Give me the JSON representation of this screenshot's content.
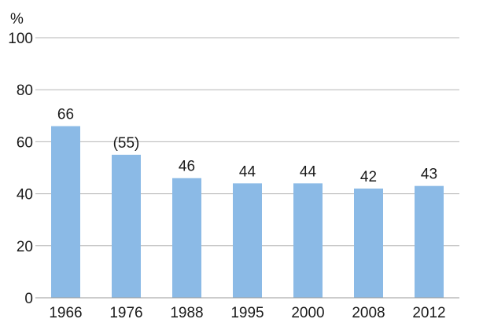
{
  "chart_data": {
    "type": "bar",
    "categories": [
      "1966",
      "1976",
      "1988",
      "1995",
      "2000",
      "2008",
      "2012"
    ],
    "values": [
      66,
      55,
      46,
      44,
      44,
      42,
      43
    ],
    "data_labels": [
      "66",
      "(55)",
      "46",
      "44",
      "44",
      "42",
      "43"
    ],
    "title": "",
    "xlabel": "",
    "ylabel": "%",
    "ylim": [
      0,
      100
    ],
    "yticks": [
      0,
      20,
      40,
      60,
      80,
      100
    ],
    "grid": true,
    "bar_color": "#8bbae6",
    "grid_color": "#b5b5b5"
  }
}
